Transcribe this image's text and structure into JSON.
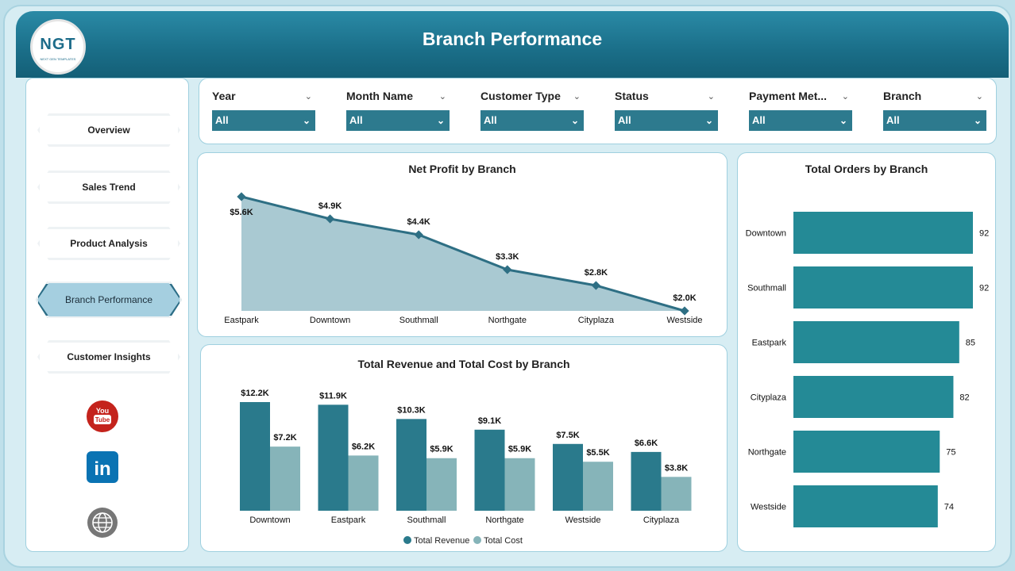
{
  "header": {
    "title": "Branch Performance",
    "logo_text": "NGT",
    "logo_subtext": "NEXT GEN TEMPLATES"
  },
  "sidebar": {
    "items": [
      {
        "label": "Overview"
      },
      {
        "label": "Sales Trend"
      },
      {
        "label": "Product Analysis"
      },
      {
        "label": "Branch Performance",
        "active": true
      },
      {
        "label": "Customer Insights"
      }
    ],
    "social": [
      {
        "icon": "youtube-icon",
        "text": "You Tube"
      },
      {
        "icon": "linkedin-icon",
        "text": "in"
      },
      {
        "icon": "globe-icon",
        "text": "www"
      }
    ]
  },
  "filters": [
    {
      "label": "Year",
      "value": "All"
    },
    {
      "label": "Month Name",
      "value": "All"
    },
    {
      "label": "Customer Type",
      "value": "All"
    },
    {
      "label": "Status",
      "value": "All"
    },
    {
      "label": "Payment Met...",
      "value": "All"
    },
    {
      "label": "Branch",
      "value": "All"
    }
  ],
  "colors": {
    "primary": "#2a7a8c",
    "secondary": "#86b4b9",
    "area": "#a9c9d2",
    "bar_orders": "#248a96",
    "header": "#1a6e88"
  },
  "chart_data": [
    {
      "type": "area",
      "title": "Net Profit by Branch",
      "categories": [
        "Eastpark",
        "Downtown",
        "Southmall",
        "Northgate",
        "Cityplaza",
        "Westside"
      ],
      "values": [
        5600,
        4900,
        4400,
        3300,
        2800,
        2000
      ],
      "labels": [
        "$5.6K",
        "$4.9K",
        "$4.4K",
        "$3.3K",
        "$2.8K",
        "$2.0K"
      ]
    },
    {
      "type": "bar",
      "title": "Total Revenue and Total Cost by Branch",
      "categories": [
        "Downtown",
        "Eastpark",
        "Southmall",
        "Northgate",
        "Westside",
        "Cityplaza"
      ],
      "series": [
        {
          "name": "Total Revenue",
          "values": [
            12200,
            11900,
            10300,
            9100,
            7500,
            6600
          ],
          "labels": [
            "$12.2K",
            "$11.9K",
            "$10.3K",
            "$9.1K",
            "$7.5K",
            "$6.6K"
          ]
        },
        {
          "name": "Total Cost",
          "values": [
            7200,
            6200,
            5900,
            5900,
            5500,
            3800
          ],
          "labels": [
            "$7.2K",
            "$6.2K",
            "$5.9K",
            "$5.9K",
            "$5.5K",
            "$3.8K"
          ]
        }
      ],
      "legend": "bottom"
    },
    {
      "type": "bar",
      "orientation": "horizontal",
      "title": "Total Orders by Branch",
      "categories": [
        "Downtown",
        "Southmall",
        "Eastpark",
        "Cityplaza",
        "Northgate",
        "Westside"
      ],
      "values": [
        92,
        92,
        85,
        82,
        75,
        74
      ]
    }
  ]
}
